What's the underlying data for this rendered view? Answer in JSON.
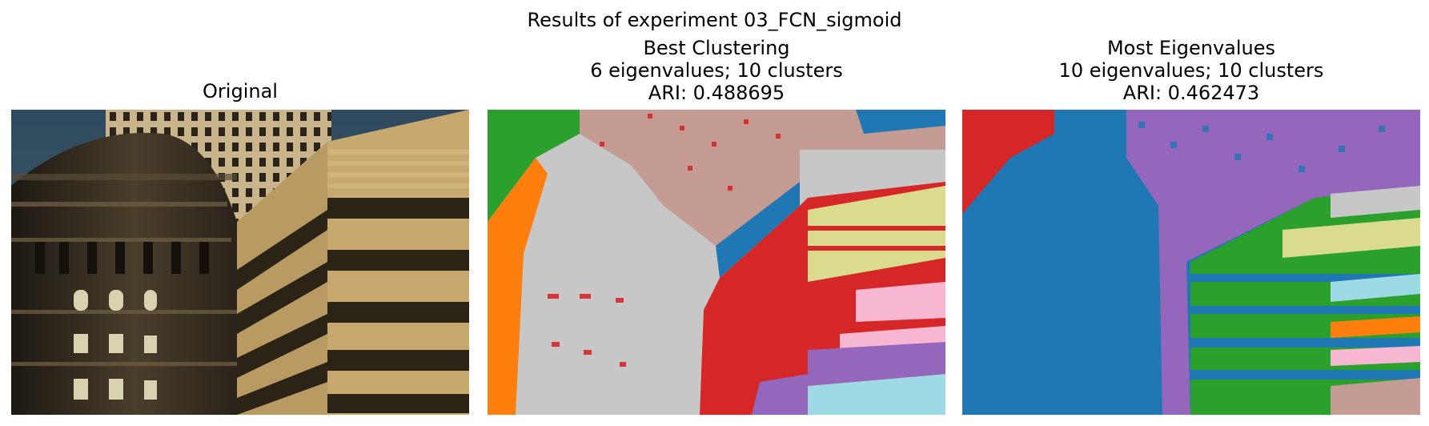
{
  "figure": {
    "suptitle": "Results of experiment 03_FCN_sigmoid"
  },
  "panels": [
    {
      "title_lines": [
        "Original"
      ],
      "image": "photo of a rounded ornate stone building in front of a grid-windowed tower and a tan striped office building"
    },
    {
      "title_lines": [
        "Best Clustering",
        "6 eigenvalues; 10 clusters",
        "ARI: 0.488695"
      ],
      "image": "segmentation map with 10 colored clusters"
    },
    {
      "title_lines": [
        "Most Eigenvalues",
        "10 eigenvalues; 10 clusters",
        "ARI: 0.462473"
      ],
      "image": "segmentation map with 10 colored clusters"
    }
  ],
  "palette": {
    "blue": "#1f77b4",
    "orange": "#ff7f0e",
    "green": "#2ca02c",
    "red": "#d62728",
    "purple": "#9467bd",
    "brown": "#c49c94",
    "pink": "#f7b6d2",
    "gray": "#c7c7c7",
    "olive": "#dbdb8d",
    "cyan": "#9edae5"
  }
}
